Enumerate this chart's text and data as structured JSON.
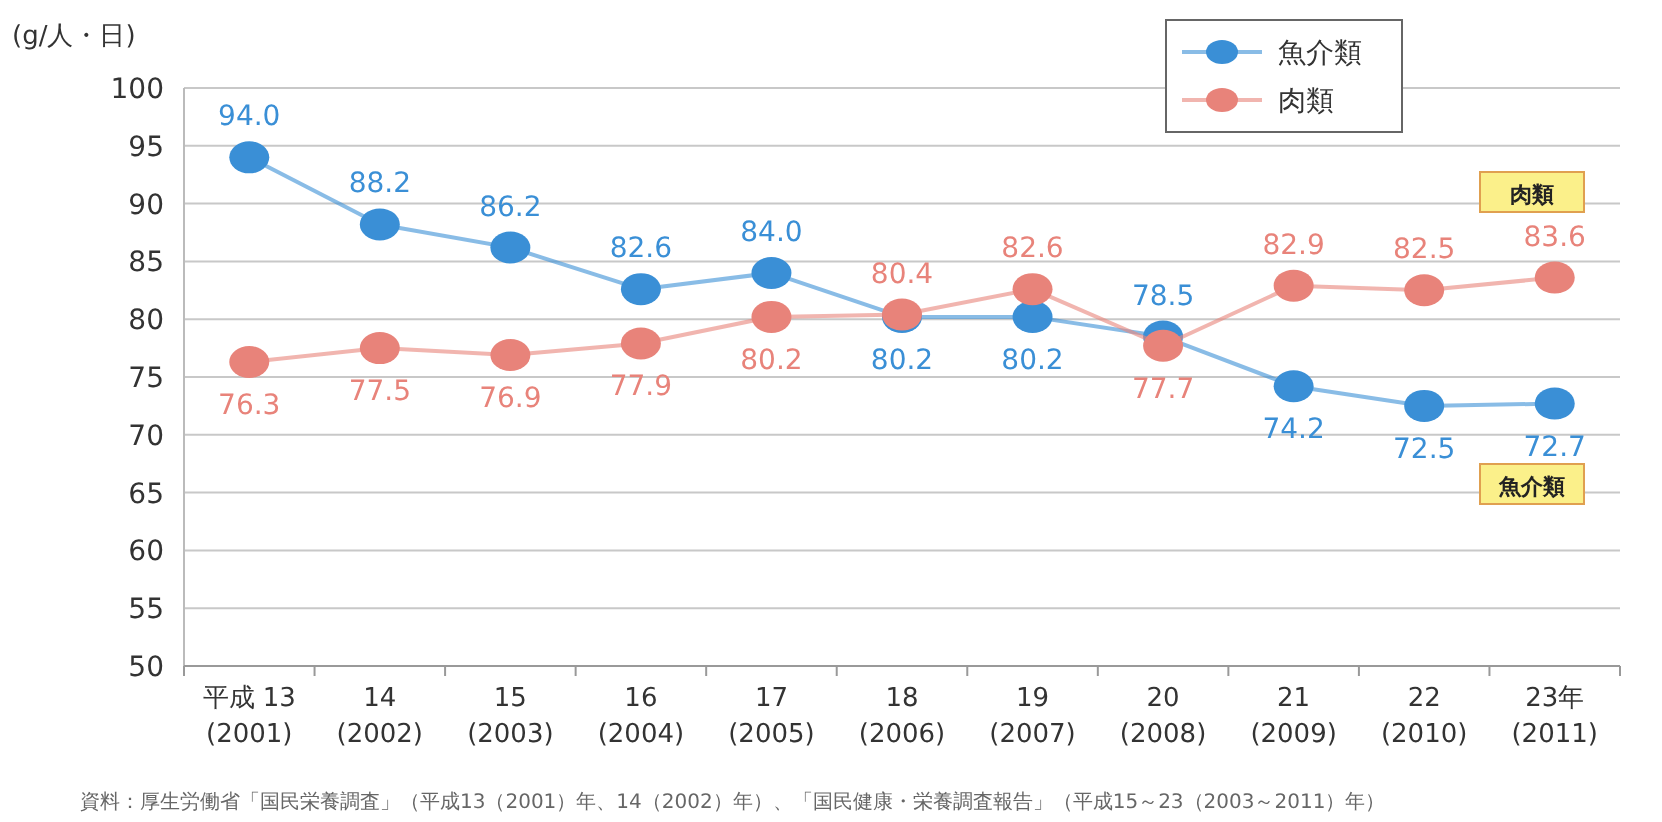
{
  "chart_data": {
    "type": "line",
    "ylabel": "(g/人・日)",
    "categories": [
      "平成 13\n(2001)",
      "14\n(2002)",
      "15\n(2003)",
      "16\n(2004)",
      "17\n(2005)",
      "18\n(2006)",
      "19\n(2007)",
      "20\n(2008)",
      "21\n(2009)",
      "22\n(2010)",
      "23年\n(2011)"
    ],
    "series": [
      {
        "name": "魚介類",
        "color": "#3a8fd6",
        "values": [
          94.0,
          88.2,
          86.2,
          82.6,
          84.0,
          80.2,
          80.2,
          78.5,
          74.2,
          72.5,
          72.7
        ],
        "value_labels": [
          "94.0",
          "88.2",
          "86.2",
          "82.6",
          "84.0",
          "80.2",
          "80.2",
          "78.5",
          "74.2",
          "72.5",
          "72.7"
        ]
      },
      {
        "name": "肉類",
        "color": "#e8837a",
        "values": [
          76.3,
          77.5,
          76.9,
          77.9,
          80.2,
          80.4,
          82.6,
          77.7,
          82.9,
          82.5,
          83.6
        ],
        "value_labels": [
          "76.3",
          "77.5",
          "76.9",
          "77.9",
          "80.2",
          "80.4",
          "82.6",
          "77.7",
          "82.9",
          "82.5",
          "83.6"
        ]
      }
    ],
    "ylim": [
      50,
      100
    ],
    "yticks": [
      50,
      55,
      60,
      65,
      70,
      75,
      80,
      85,
      90,
      95,
      100
    ],
    "grid": "y",
    "legend": "top right",
    "marker": "circle",
    "annotations": [
      "肉類",
      "魚介類",
      "資料：厚生労働省「国民栄養調査」（平成13（2001）年、14（2002）年）、「国民健康・栄養調査報告」（平成15～23（2003～2011）年）"
    ]
  }
}
